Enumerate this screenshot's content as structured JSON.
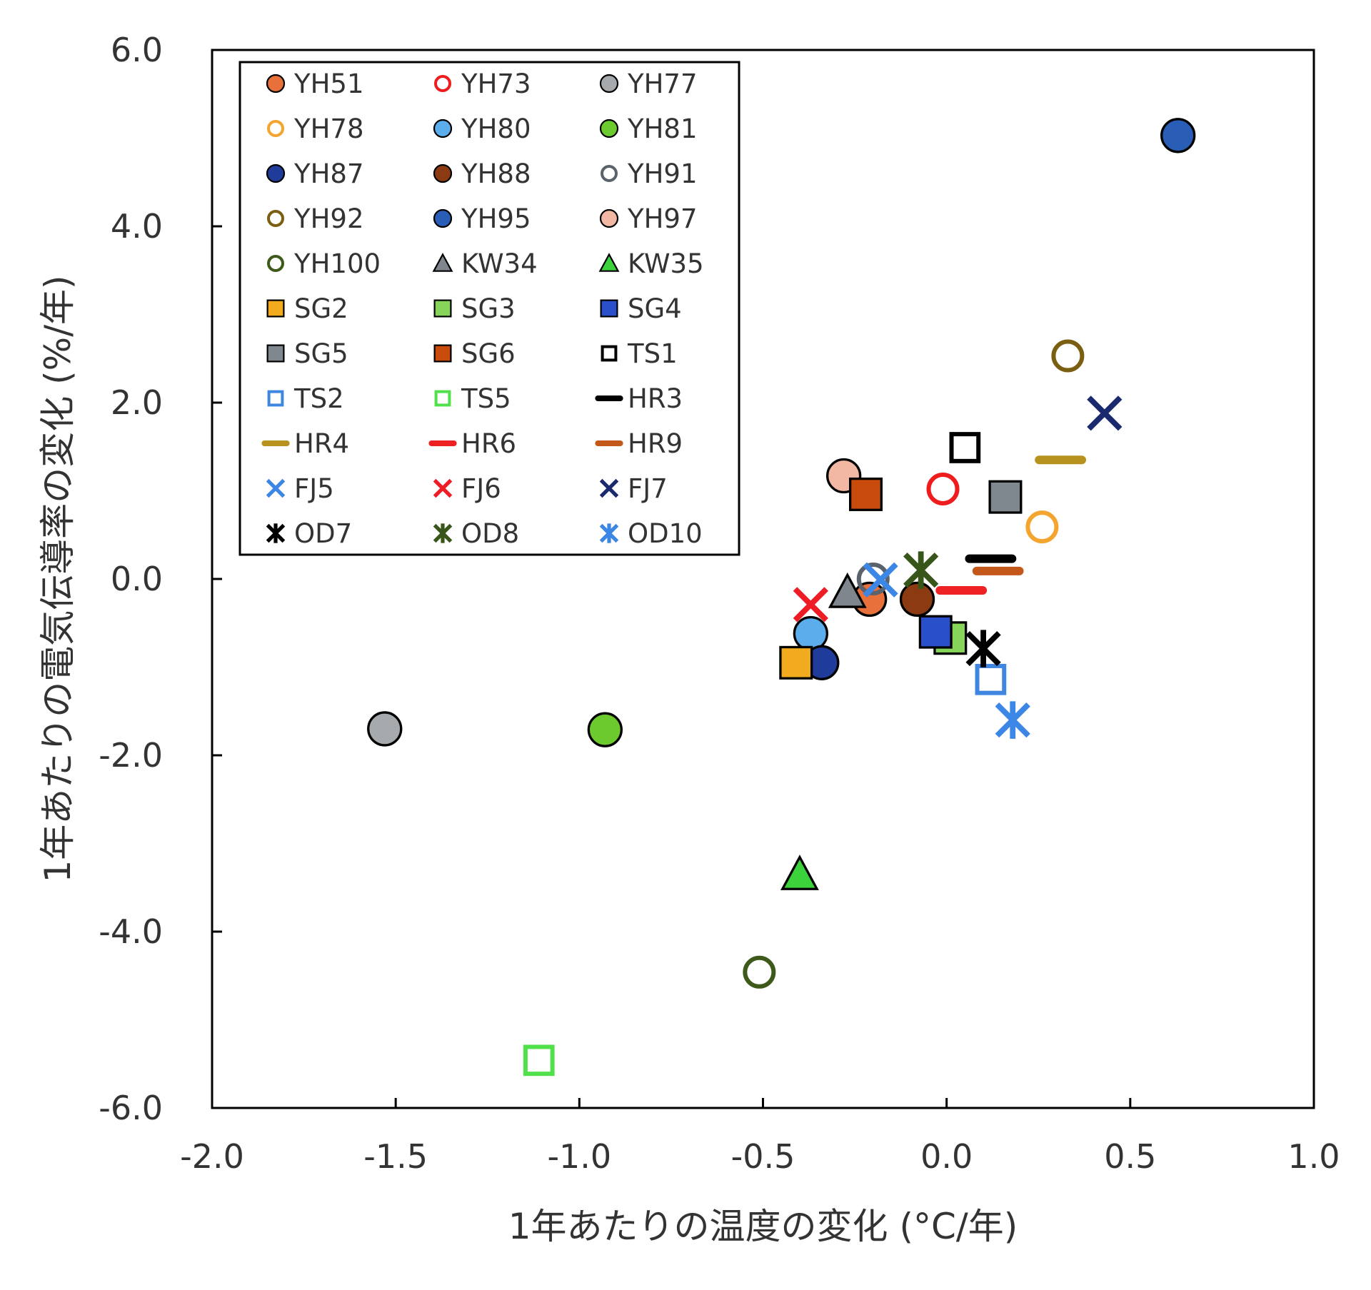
{
  "chart_data": {
    "type": "scatter",
    "title": "",
    "xlabel": "1年あたりの温度の変化 (°C/年)",
    "ylabel": "1年あたりの電気伝導率の変化 (%/年)",
    "xlim": [
      -2.0,
      1.0
    ],
    "ylim": [
      -6.0,
      6.0
    ],
    "xticks": [
      "-2.0",
      "-1.5",
      "-1.0",
      "-0.5",
      "0.0",
      "0.5",
      "1.0"
    ],
    "yticks": [
      "6.0",
      "4.0",
      "2.0",
      "0.0",
      "-2.0",
      "-4.0",
      "-6.0"
    ],
    "grid": false,
    "legend_position": "top-left",
    "series": [
      {
        "name": "YH51",
        "marker": "circle",
        "color": "#E8703A",
        "x": -0.21,
        "y": -0.23
      },
      {
        "name": "YH73",
        "marker": "circle-open",
        "color": "#EE1C1C",
        "x": -0.01,
        "y": 1.02
      },
      {
        "name": "YH77",
        "marker": "circle",
        "color": "#A7AAAD",
        "x": -1.53,
        "y": -1.7
      },
      {
        "name": "YH78",
        "marker": "circle-open",
        "color": "#F4A52F",
        "x": 0.26,
        "y": 0.59
      },
      {
        "name": "YH80",
        "marker": "circle",
        "color": "#5BADEB",
        "x": -0.37,
        "y": -0.62
      },
      {
        "name": "YH81",
        "marker": "circle",
        "color": "#6CC92E",
        "x": -0.93,
        "y": -1.71
      },
      {
        "name": "YH87",
        "marker": "circle",
        "color": "#1F3C9A",
        "x": -0.34,
        "y": -0.95
      },
      {
        "name": "YH88",
        "marker": "circle",
        "color": "#8B3A12",
        "x": -0.08,
        "y": -0.23
      },
      {
        "name": "YH91",
        "marker": "circle-open",
        "color": "#5A626B",
        "x": -0.2,
        "y": 0.0
      },
      {
        "name": "YH92",
        "marker": "circle-open",
        "color": "#7A5E12",
        "x": 0.33,
        "y": 2.53
      },
      {
        "name": "YH95",
        "marker": "circle",
        "color": "#2A5DB5",
        "x": 0.63,
        "y": 5.03
      },
      {
        "name": "YH97",
        "marker": "circle",
        "color": "#F2B8A4",
        "x": -0.28,
        "y": 1.17
      },
      {
        "name": "YH100",
        "marker": "circle-open",
        "color": "#3E5A1A",
        "x": -0.51,
        "y": -4.46
      },
      {
        "name": "KW34",
        "marker": "triangle",
        "color": "#7F868D",
        "x": -0.27,
        "y": -0.15
      },
      {
        "name": "KW35",
        "marker": "triangle",
        "color": "#3CD23C",
        "x": -0.4,
        "y": -3.35
      },
      {
        "name": "SG2",
        "marker": "square",
        "color": "#F2AA1F",
        "x": -0.41,
        "y": -0.95
      },
      {
        "name": "SG3",
        "marker": "square",
        "color": "#86D45A",
        "x": 0.01,
        "y": -0.67
      },
      {
        "name": "SG4",
        "marker": "square",
        "color": "#2A4FCB",
        "x": -0.03,
        "y": -0.6
      },
      {
        "name": "SG5",
        "marker": "square",
        "color": "#7F888E",
        "x": 0.16,
        "y": 0.93
      },
      {
        "name": "SG6",
        "marker": "square",
        "color": "#C84B0C",
        "x": -0.22,
        "y": 0.96
      },
      {
        "name": "TS1",
        "marker": "square-open",
        "color": "#000000",
        "x": 0.05,
        "y": 1.49
      },
      {
        "name": "TS2",
        "marker": "square-open",
        "color": "#3F86E0",
        "x": 0.12,
        "y": -1.14
      },
      {
        "name": "TS5",
        "marker": "square-open",
        "color": "#50E04A",
        "x": -1.11,
        "y": -5.46
      },
      {
        "name": "HR3",
        "marker": "dash",
        "color": "#000000",
        "x": 0.12,
        "y": 0.23
      },
      {
        "name": "HR4",
        "marker": "dash",
        "color": "#B8921E",
        "x": 0.31,
        "y": 1.35
      },
      {
        "name": "HR6",
        "marker": "dash",
        "color": "#EE2222",
        "x": 0.04,
        "y": -0.13
      },
      {
        "name": "HR9",
        "marker": "dash",
        "color": "#C4581A",
        "x": 0.14,
        "y": 0.09
      },
      {
        "name": "FJ5",
        "marker": "x",
        "color": "#3C86E6",
        "x": -0.18,
        "y": -0.01
      },
      {
        "name": "FJ6",
        "marker": "x",
        "color": "#EE1C25",
        "x": -0.37,
        "y": -0.29
      },
      {
        "name": "FJ7",
        "marker": "x",
        "color": "#1B2A6E",
        "x": 0.43,
        "y": 1.88
      },
      {
        "name": "OD7",
        "marker": "star",
        "color": "#000000",
        "x": 0.1,
        "y": -0.79
      },
      {
        "name": "OD8",
        "marker": "star",
        "color": "#38561A",
        "x": -0.07,
        "y": 0.1
      },
      {
        "name": "OD10",
        "marker": "star",
        "color": "#3C86E6",
        "x": 0.18,
        "y": -1.6
      }
    ]
  }
}
